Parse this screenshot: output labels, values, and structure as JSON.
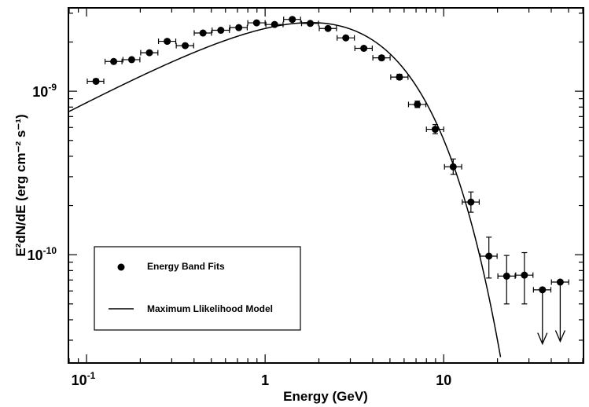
{
  "chart_data": {
    "type": "scatter",
    "xlabel": "Energy (GeV)",
    "ylabel": "E²dN/dE (erg cm⁻² s⁻¹)",
    "x_scale": "log",
    "y_scale": "log",
    "xlim": [
      0.08,
      60
    ],
    "ylim": [
      2.2e-11,
      3.2e-09
    ],
    "x_ticks": [
      {
        "value": 0.1,
        "label": "10",
        "exp": "-1"
      },
      {
        "value": 1,
        "label": "1",
        "exp": ""
      },
      {
        "value": 10,
        "label": "10",
        "exp": ""
      }
    ],
    "y_ticks": [
      {
        "value": 1e-10,
        "label": "10",
        "exp": "-10"
      },
      {
        "value": 1e-09,
        "label": "10",
        "exp": "-9"
      }
    ],
    "legend": {
      "position": "bottom-left",
      "entries": [
        {
          "label": "Energy Band Fits",
          "marker": "point"
        },
        {
          "label": "Maximum Llikelihood Model",
          "marker": "line"
        }
      ]
    },
    "series": [
      {
        "name": "Energy Band Fits",
        "kind": "points",
        "points": [
          {
            "x": 0.113,
            "y": 1.15e-09,
            "xerr": [
              0.101,
              0.125
            ],
            "yerr": [
              1.12e-09,
              1.19e-09
            ]
          },
          {
            "x": 0.142,
            "y": 1.52e-09,
            "xerr": [
              0.127,
              0.158
            ],
            "yerr": [
              1.49e-09,
              1.55e-09
            ]
          },
          {
            "x": 0.179,
            "y": 1.56e-09,
            "xerr": [
              0.16,
              0.199
            ],
            "yerr": [
              1.53e-09,
              1.6e-09
            ]
          },
          {
            "x": 0.225,
            "y": 1.72e-09,
            "xerr": [
              0.201,
              0.251
            ],
            "yerr": [
              1.69e-09,
              1.76e-09
            ]
          },
          {
            "x": 0.283,
            "y": 2.02e-09,
            "xerr": [
              0.253,
              0.316
            ],
            "yerr": [
              1.98e-09,
              2.06e-09
            ]
          },
          {
            "x": 0.357,
            "y": 1.9e-09,
            "xerr": [
              0.318,
              0.398
            ],
            "yerr": [
              1.86e-09,
              1.94e-09
            ]
          },
          {
            "x": 0.449,
            "y": 2.27e-09,
            "xerr": [
              0.401,
              0.501
            ],
            "yerr": [
              2.23e-09,
              2.31e-09
            ]
          },
          {
            "x": 0.565,
            "y": 2.36e-09,
            "xerr": [
              0.505,
              0.631
            ],
            "yerr": [
              2.32e-09,
              2.4e-09
            ]
          },
          {
            "x": 0.712,
            "y": 2.45e-09,
            "xerr": [
              0.635,
              0.794
            ],
            "yerr": [
              2.41e-09,
              2.49e-09
            ]
          },
          {
            "x": 0.896,
            "y": 2.62e-09,
            "xerr": [
              0.8,
              1.0
            ],
            "yerr": [
              2.57e-09,
              2.66e-09
            ]
          },
          {
            "x": 1.13,
            "y": 2.56e-09,
            "xerr": [
              1.01,
              1.26
            ],
            "yerr": [
              2.51e-09,
              2.6e-09
            ]
          },
          {
            "x": 1.42,
            "y": 2.75e-09,
            "xerr": [
              1.27,
              1.58
            ],
            "yerr": [
              2.7e-09,
              2.8e-09
            ]
          },
          {
            "x": 1.79,
            "y": 2.6e-09,
            "xerr": [
              1.6,
              1.99
            ],
            "yerr": [
              2.55e-09,
              2.65e-09
            ]
          },
          {
            "x": 2.25,
            "y": 2.42e-09,
            "xerr": [
              2.01,
              2.51
            ],
            "yerr": [
              2.37e-09,
              2.47e-09
            ]
          },
          {
            "x": 2.83,
            "y": 2.12e-09,
            "xerr": [
              2.53,
              3.16
            ],
            "yerr": [
              2.07e-09,
              2.17e-09
            ]
          },
          {
            "x": 3.57,
            "y": 1.83e-09,
            "xerr": [
              3.18,
              3.98
            ],
            "yerr": [
              1.78e-09,
              1.88e-09
            ]
          },
          {
            "x": 4.49,
            "y": 1.6e-09,
            "xerr": [
              4.01,
              5.01
            ],
            "yerr": [
              1.55e-09,
              1.65e-09
            ]
          },
          {
            "x": 5.65,
            "y": 1.22e-09,
            "xerr": [
              5.05,
              6.31
            ],
            "yerr": [
              1.18e-09,
              1.27e-09
            ]
          },
          {
            "x": 7.12,
            "y": 8.3e-10,
            "xerr": [
              6.35,
              7.94
            ],
            "yerr": [
              7.95e-10,
              8.7e-10
            ]
          },
          {
            "x": 8.96,
            "y": 5.85e-10,
            "xerr": [
              8.0,
              10.0
            ],
            "yerr": [
              5.5e-10,
              6.25e-10
            ]
          },
          {
            "x": 11.3,
            "y": 3.45e-10,
            "xerr": [
              10.1,
              12.6
            ],
            "yerr": [
              3.1e-10,
              3.85e-10
            ]
          },
          {
            "x": 14.2,
            "y": 2.1e-10,
            "xerr": [
              12.7,
              15.8
            ],
            "yerr": [
              1.82e-10,
              2.42e-10
            ]
          },
          {
            "x": 17.9,
            "y": 9.8e-11,
            "xerr": [
              16.0,
              19.9
            ],
            "yerr": [
              7.2e-11,
              1.28e-10
            ]
          },
          {
            "x": 22.5,
            "y": 7.4e-11,
            "xerr": [
              20.1,
              25.1
            ],
            "yerr": [
              5e-11,
              9.9e-11
            ]
          },
          {
            "x": 28.3,
            "y": 7.5e-11,
            "xerr": [
              25.3,
              31.6
            ],
            "yerr": [
              5e-11,
              1.03e-10
            ]
          }
        ]
      },
      {
        "name": "Upper limits",
        "kind": "upper_limits",
        "points": [
          {
            "x": 35.7,
            "y": 6.1e-11,
            "xerr": [
              31.8,
              39.8
            ],
            "arrow_to": 2.85e-11
          },
          {
            "x": 44.9,
            "y": 6.8e-11,
            "xerr": [
              40.1,
              50.1
            ],
            "arrow_to": 2.95e-11
          }
        ]
      },
      {
        "name": "Maximum Llikelihood Model",
        "kind": "line",
        "model": {
          "form": "power-law with exponential cutoff",
          "E0": 1.0,
          "y0": 2.42e-09,
          "index": 1.42,
          "cutoff": 3.1
        }
      }
    ]
  }
}
